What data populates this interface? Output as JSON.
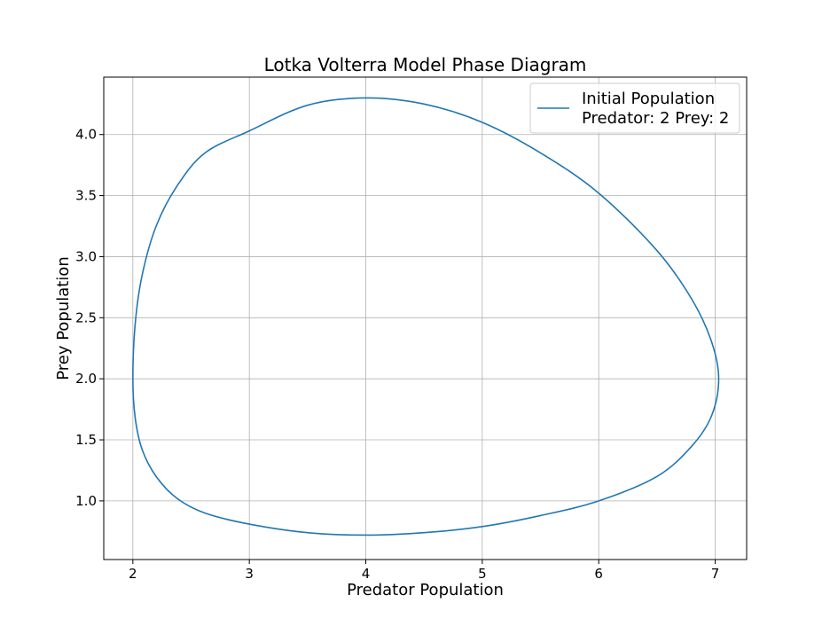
{
  "chart_data": {
    "type": "line",
    "title": "Lotka Volterra Model Phase Diagram",
    "xlabel": "Predator Population",
    "ylabel": "Prey Population",
    "xlim": [
      1.75,
      7.27
    ],
    "ylim": [
      0.52,
      4.47
    ],
    "xticks": [
      2,
      3,
      4,
      5,
      6,
      7
    ],
    "yticks": [
      1.0,
      1.5,
      2.0,
      2.5,
      3.0,
      3.5,
      4.0
    ],
    "xtick_labels": [
      "2",
      "3",
      "4",
      "5",
      "6",
      "7"
    ],
    "ytick_labels": [
      "1.0",
      "1.5",
      "2.0",
      "2.5",
      "3.0",
      "3.5",
      "4.0"
    ],
    "grid": true,
    "legend": {
      "placement": "upper right",
      "entries": [
        {
          "label_line1": "Initial Population",
          "label_line2": "Predator: 2 Prey: 2"
        }
      ]
    },
    "series": [
      {
        "name": "Initial Population Predator: 2 Prey: 2",
        "color": "#1f77b4",
        "x": [
          2.0,
          2.02,
          2.08,
          2.2,
          2.38,
          2.62,
          3.0,
          3.5,
          4.0,
          4.5,
          5.0,
          5.5,
          6.0,
          6.5,
          6.8,
          6.97,
          7.03,
          6.97,
          6.8,
          6.5,
          6.0,
          5.5,
          5.0,
          4.5,
          4.0,
          3.5,
          3.0,
          2.62,
          2.38,
          2.2,
          2.08,
          2.02,
          2.0
        ],
        "y": [
          2.0,
          2.45,
          2.85,
          3.25,
          3.58,
          3.85,
          4.03,
          4.24,
          4.3,
          4.25,
          4.1,
          3.85,
          3.52,
          3.05,
          2.65,
          2.3,
          2.0,
          1.7,
          1.45,
          1.2,
          1.0,
          0.88,
          0.79,
          0.74,
          0.72,
          0.74,
          0.81,
          0.9,
          1.02,
          1.2,
          1.42,
          1.68,
          2.0
        ]
      }
    ]
  }
}
